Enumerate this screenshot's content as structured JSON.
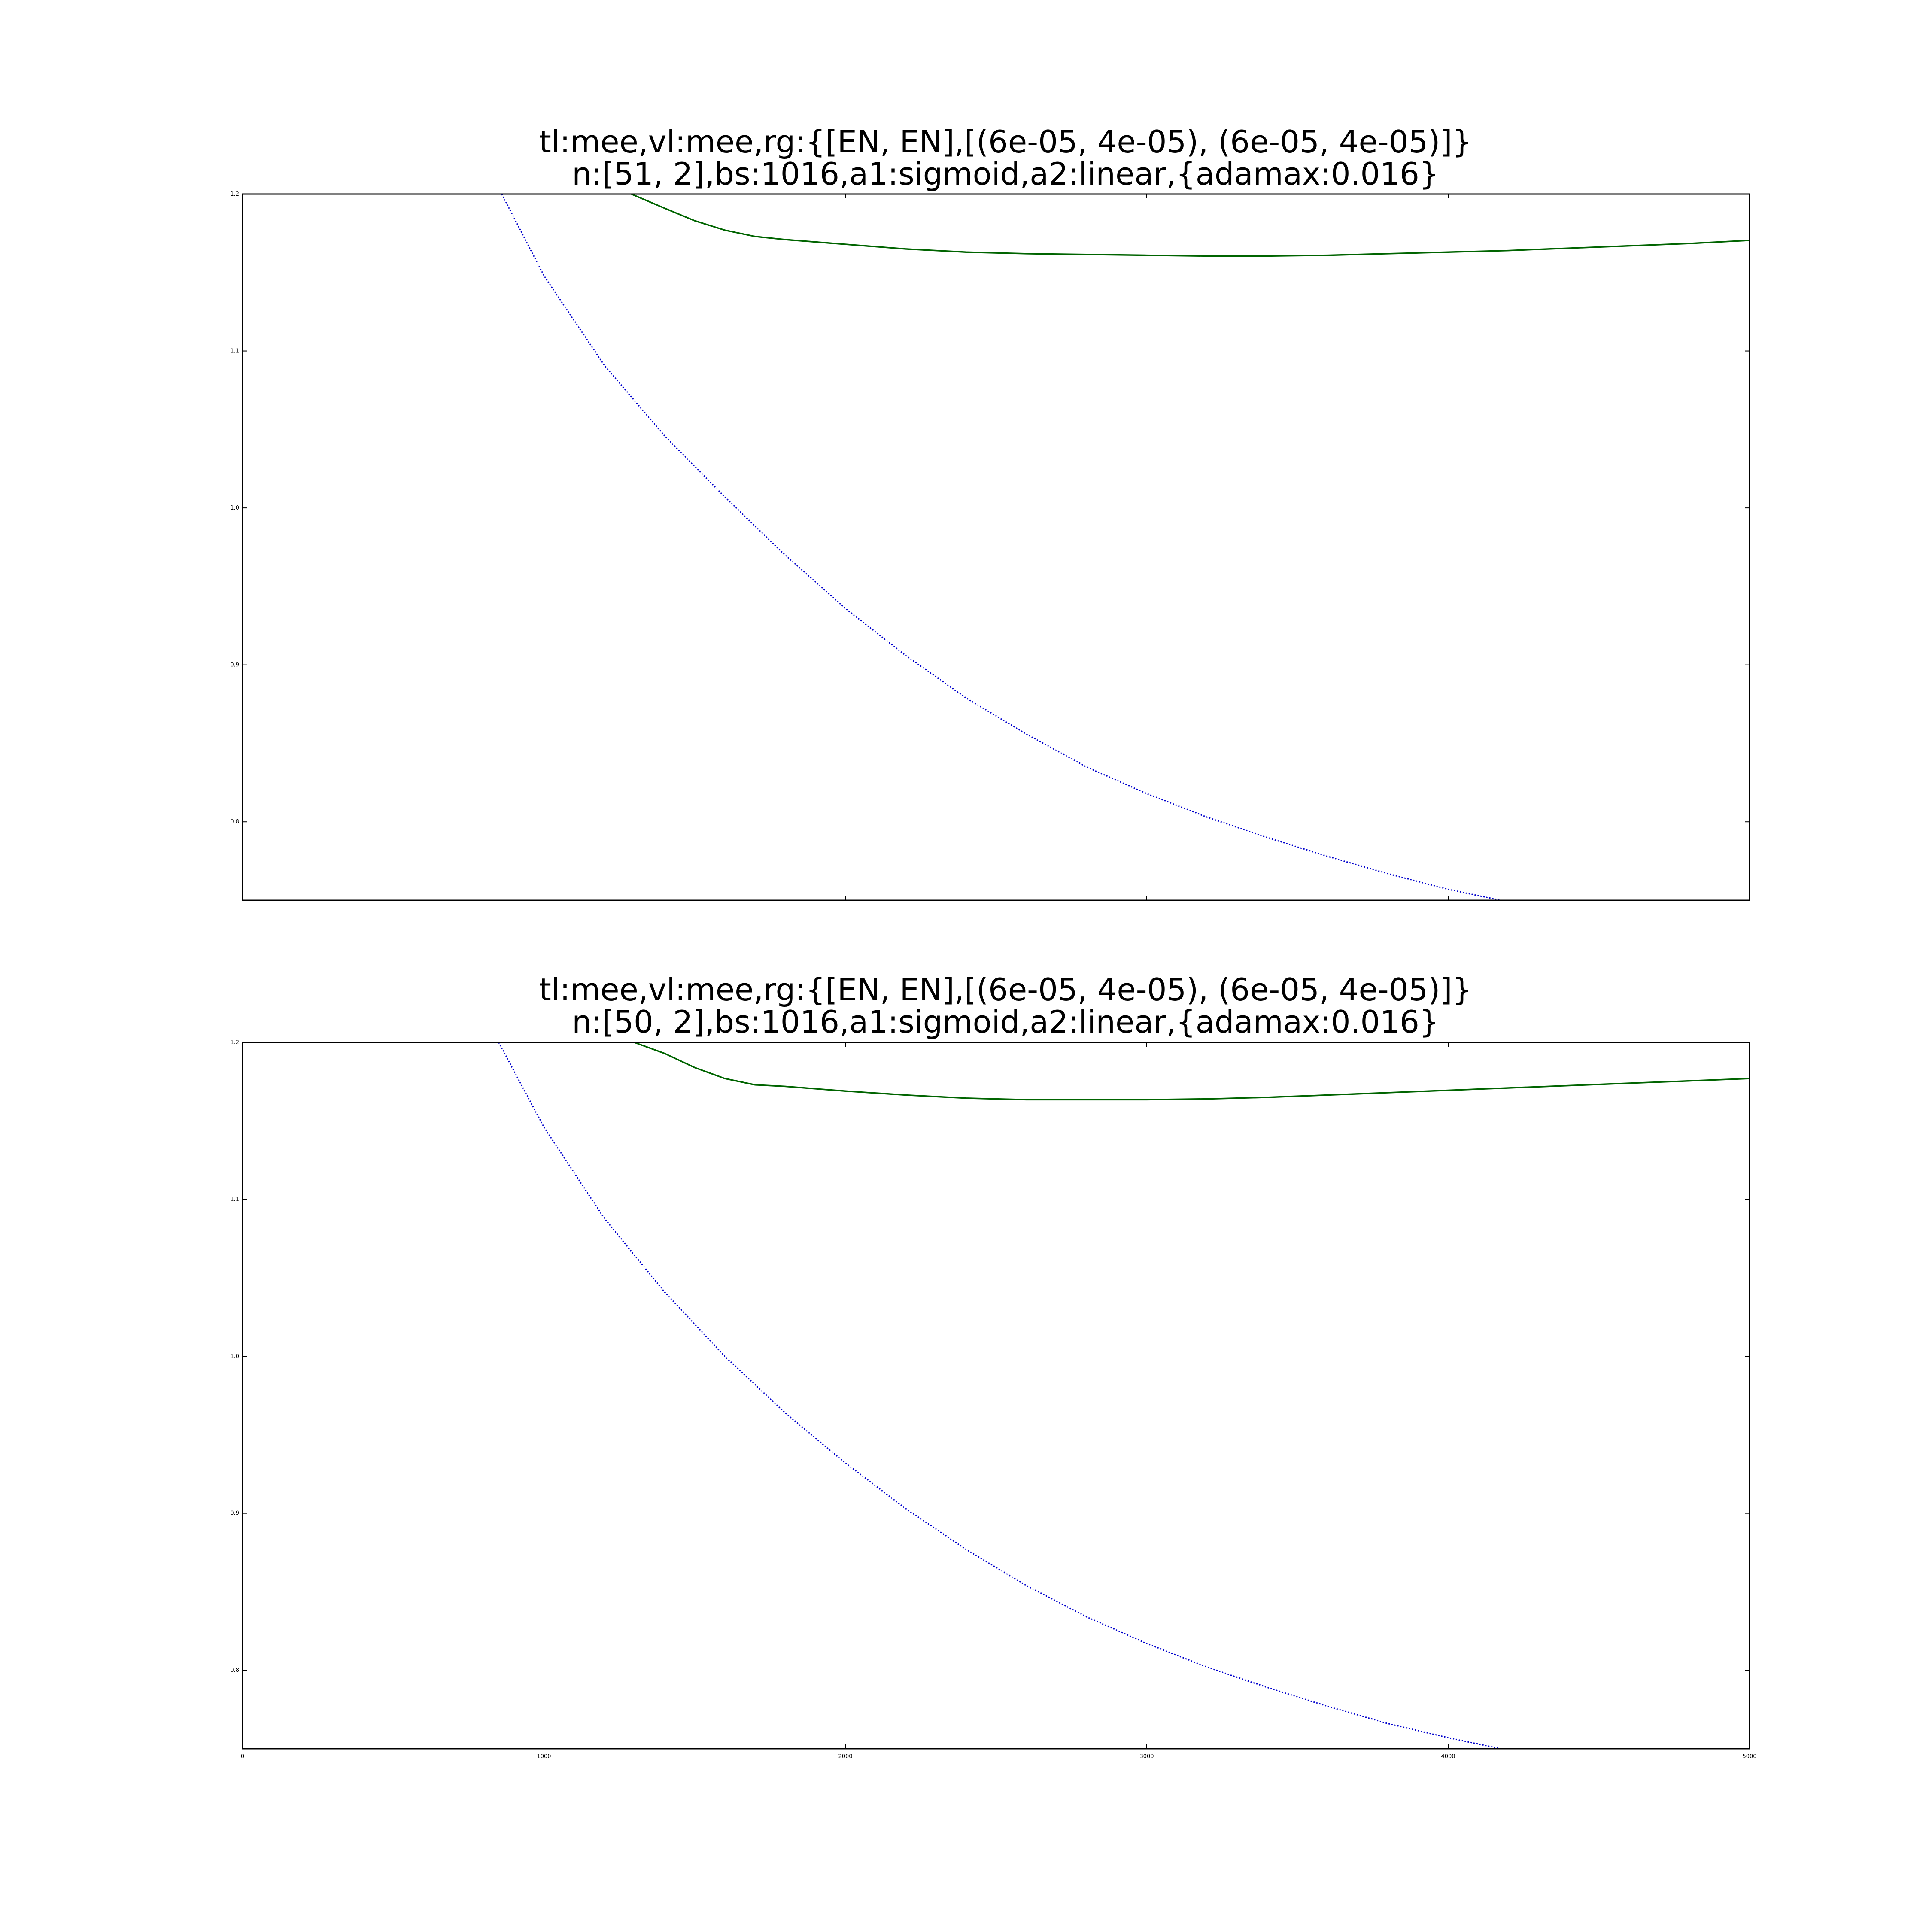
{
  "chart_data": [
    {
      "type": "line",
      "title_line1": "tl:mee,vl:mee,rg:{[EN, EN],[(6e-05, 4e-05), (6e-05, 4e-05)]}",
      "title_line2": "n:[51, 2],bs:1016,a1:sigmoid,a2:linear,{adamax:0.016}",
      "xlim": [
        0,
        5000
      ],
      "ylim": [
        0.75,
        1.2
      ],
      "yticks": [
        0.8,
        0.9,
        1.0,
        1.1,
        1.2
      ],
      "ytick_labels": [
        "0.8",
        "0.9",
        "1.0",
        "1.1",
        "1.2"
      ],
      "xticks": [
        0,
        1000,
        2000,
        3000,
        4000,
        5000
      ],
      "xtick_labels": [],
      "grid": false,
      "series": [
        {
          "color": "#0000cc",
          "style": "dotted",
          "x": [
            860,
            1000,
            1200,
            1400,
            1600,
            1800,
            2000,
            2200,
            2400,
            2600,
            2800,
            3000,
            3200,
            3400,
            3600,
            3800,
            4000,
            4200
          ],
          "values": [
            1.2,
            1.148,
            1.091,
            1.046,
            1.007,
            0.97,
            0.936,
            0.906,
            0.879,
            0.856,
            0.835,
            0.818,
            0.803,
            0.79,
            0.778,
            0.767,
            0.757,
            0.749
          ]
        },
        {
          "color": "#006400",
          "style": "solid",
          "x": [
            1290,
            1400,
            1500,
            1600,
            1700,
            1800,
            2000,
            2200,
            2400,
            2600,
            2800,
            3000,
            3200,
            3400,
            3600,
            3800,
            4000,
            4200,
            4400,
            4600,
            4800,
            5000
          ],
          "values": [
            1.2,
            1.191,
            1.183,
            1.177,
            1.173,
            1.171,
            1.168,
            1.165,
            1.163,
            1.162,
            1.1615,
            1.161,
            1.1605,
            1.1605,
            1.161,
            1.162,
            1.163,
            1.164,
            1.1655,
            1.167,
            1.1685,
            1.1705
          ]
        }
      ]
    },
    {
      "type": "line",
      "title_line1": "tl:mee,vl:mee,rg:{[EN, EN],[(6e-05, 4e-05), (6e-05, 4e-05)]}",
      "title_line2": "n:[50, 2],bs:1016,a1:sigmoid,a2:linear,{adamax:0.016}",
      "xlim": [
        0,
        5000
      ],
      "ylim": [
        0.75,
        1.2
      ],
      "yticks": [
        0.8,
        0.9,
        1.0,
        1.1,
        1.2
      ],
      "ytick_labels": [
        "0.8",
        "0.9",
        "1.0",
        "1.1",
        "1.2"
      ],
      "xticks": [
        0,
        1000,
        2000,
        3000,
        4000,
        5000
      ],
      "xtick_labels": [
        "0",
        "1000",
        "2000",
        "3000",
        "4000",
        "5000"
      ],
      "grid": false,
      "series": [
        {
          "color": "#0000cc",
          "style": "dotted",
          "x": [
            850,
            1000,
            1200,
            1400,
            1600,
            1800,
            2000,
            2200,
            2400,
            2600,
            2800,
            3000,
            3200,
            3400,
            3600,
            3800,
            4000,
            4200
          ],
          "values": [
            1.2,
            1.146,
            1.088,
            1.041,
            1.0,
            0.964,
            0.932,
            0.903,
            0.877,
            0.854,
            0.834,
            0.817,
            0.802,
            0.789,
            0.777,
            0.766,
            0.757,
            0.749
          ]
        },
        {
          "color": "#006400",
          "style": "solid",
          "x": [
            1300,
            1400,
            1500,
            1600,
            1700,
            1800,
            2000,
            2200,
            2400,
            2600,
            2800,
            3000,
            3200,
            3400,
            3600,
            3800,
            4000,
            4200,
            4400,
            4600,
            4800,
            5000
          ],
          "values": [
            1.2,
            1.193,
            1.184,
            1.177,
            1.173,
            1.172,
            1.169,
            1.1665,
            1.1645,
            1.1635,
            1.1635,
            1.1635,
            1.164,
            1.165,
            1.1665,
            1.168,
            1.1695,
            1.171,
            1.1725,
            1.174,
            1.1755,
            1.177
          ]
        }
      ]
    }
  ]
}
